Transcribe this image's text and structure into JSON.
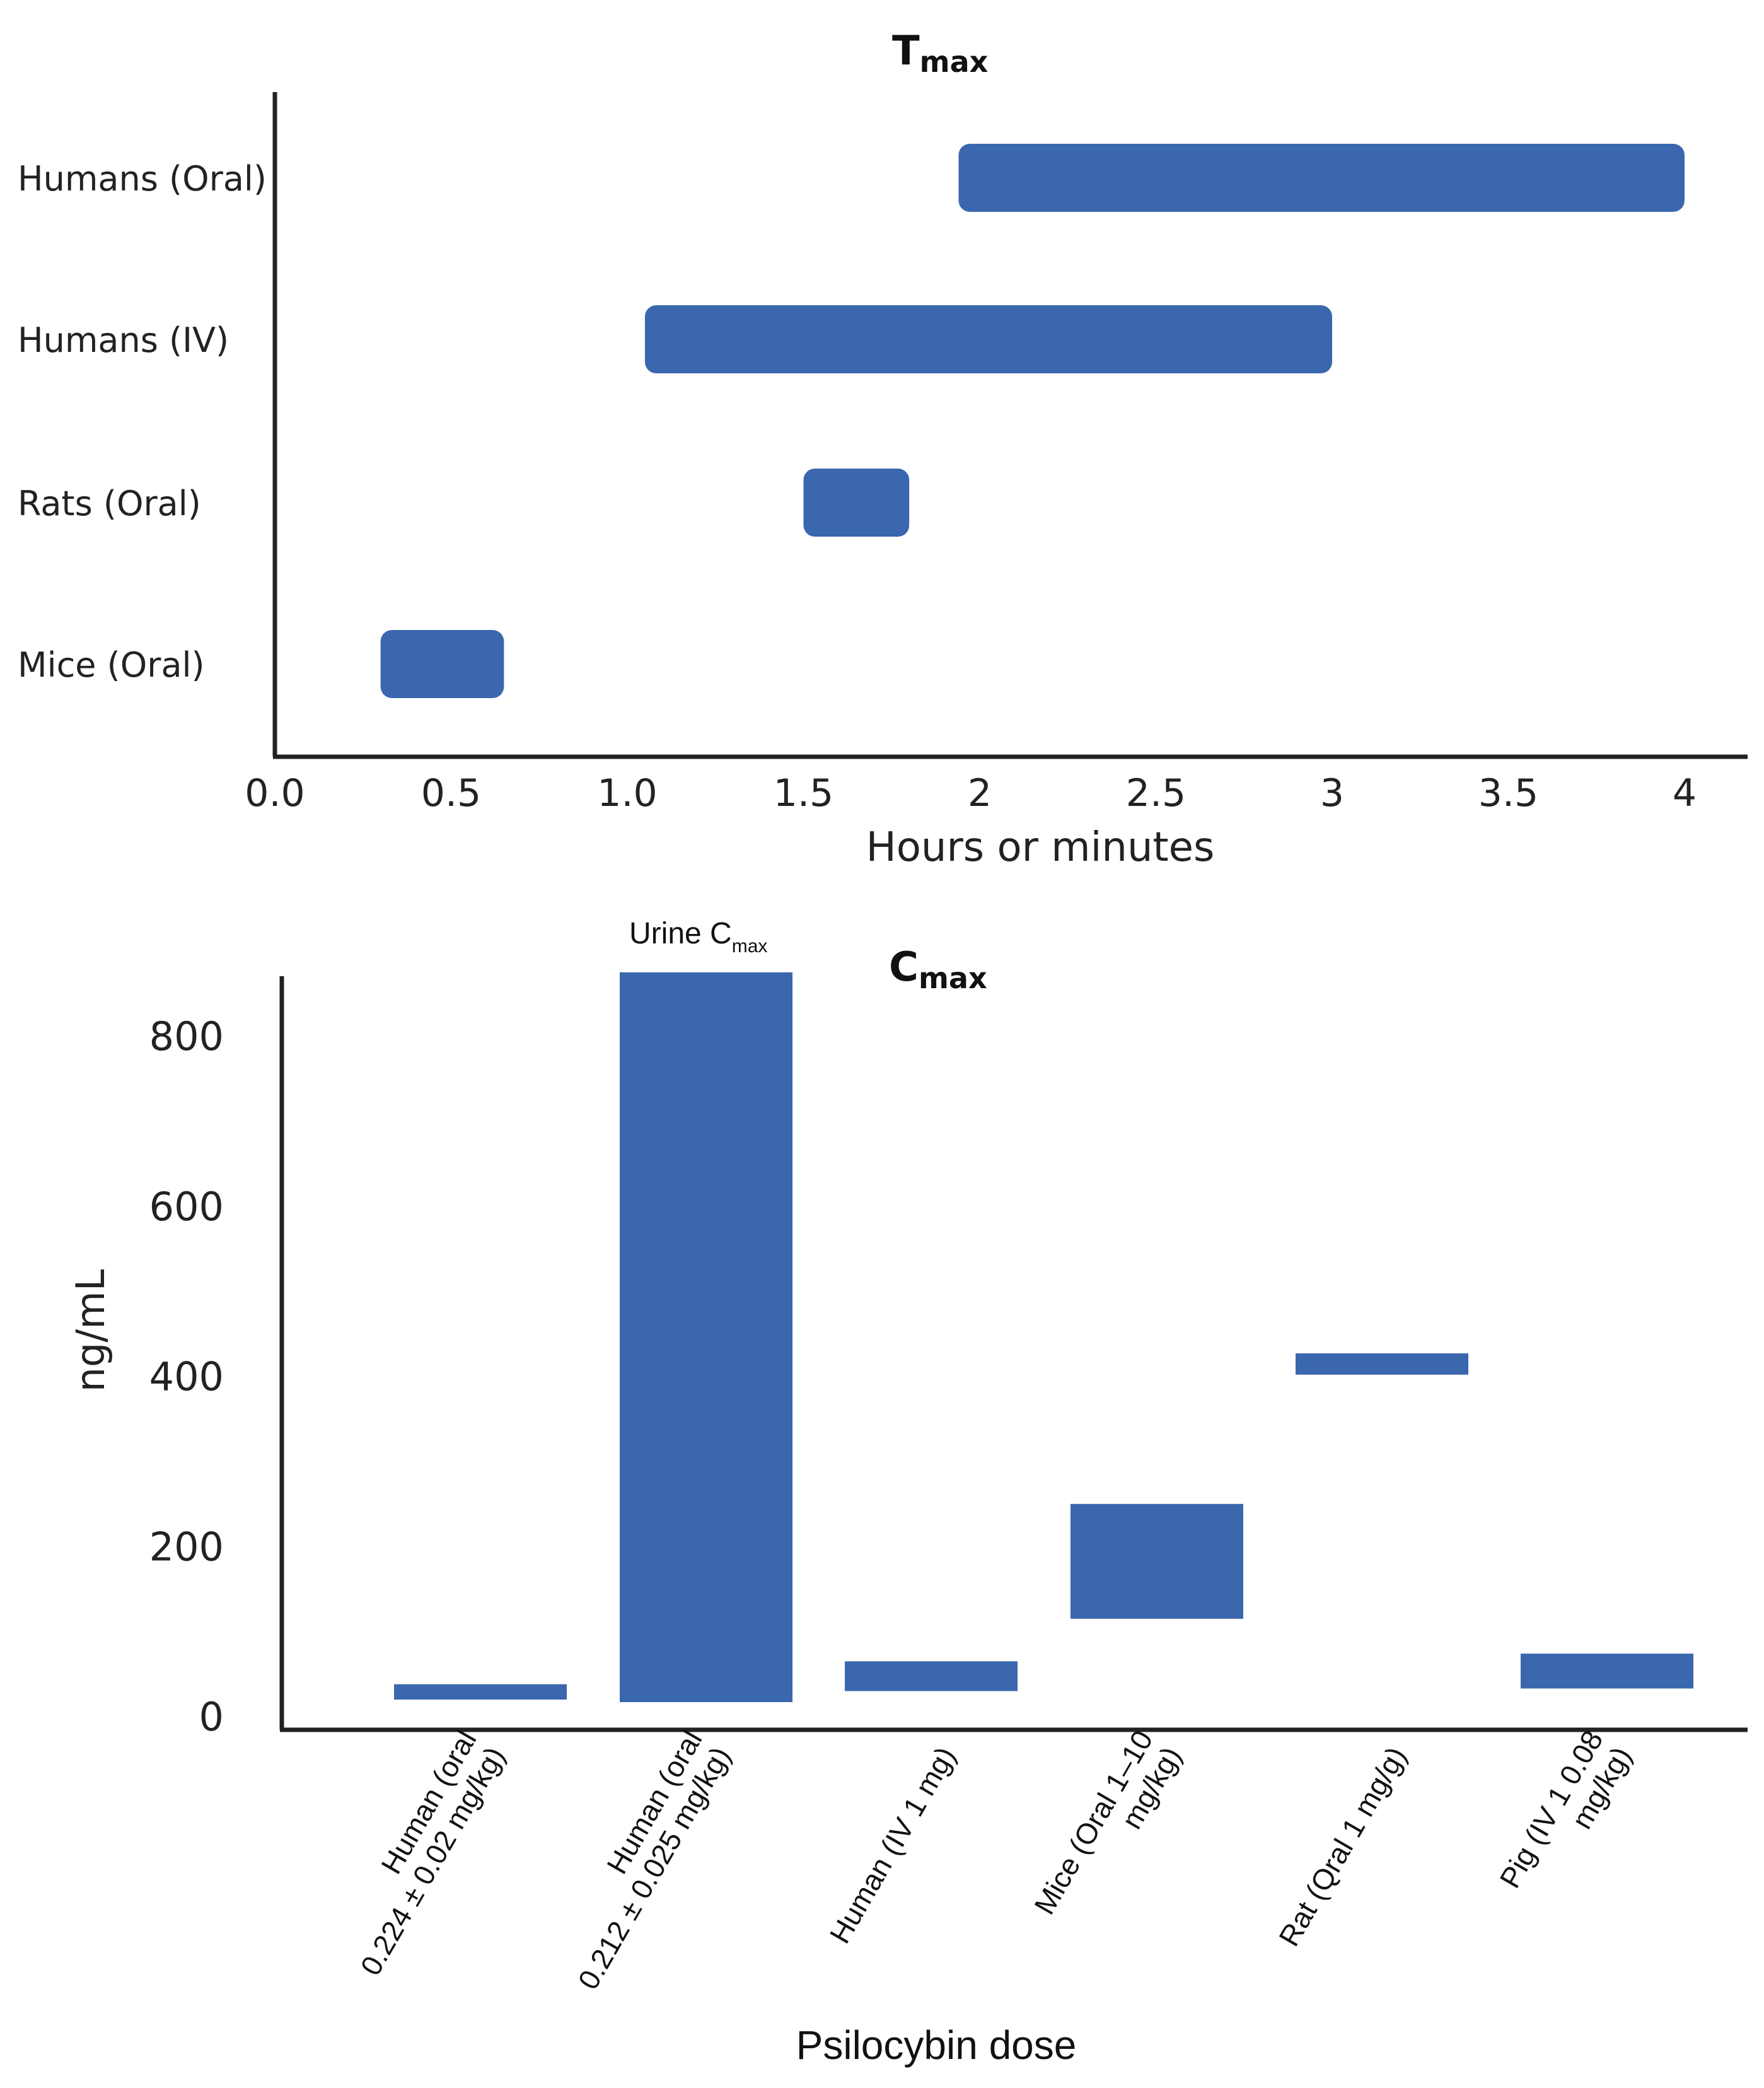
{
  "chart_data": [
    {
      "type": "bar",
      "orientation": "horizontal-range",
      "title": "T",
      "title_subscript": "max",
      "xlabel": "Hours or minutes",
      "xlim": [
        0,
        4.15
      ],
      "x_ticks": [
        "0.0",
        "0.5",
        "1.0",
        "1.5",
        "2",
        "2.5",
        "3",
        "3.5",
        "4"
      ],
      "x_tick_values": [
        0,
        0.5,
        1.0,
        1.5,
        2,
        2.5,
        3,
        3.5,
        4
      ],
      "categories": [
        "Humans (Oral)",
        "Humans (IV)",
        "Rats (Oral)",
        "Mice (Oral)"
      ],
      "ranges": [
        [
          1.94,
          4.0
        ],
        [
          1.05,
          3.0
        ],
        [
          1.5,
          1.8
        ],
        [
          0.3,
          0.65
        ]
      ],
      "bar_color": "#3a67ad",
      "grid": false
    },
    {
      "type": "bar",
      "orientation": "vertical-range",
      "title": "C",
      "title_subscript": "max",
      "ylabel": "ng/mL",
      "xlabel": "Psilocybin dose",
      "ylim": [
        0,
        880
      ],
      "y_ticks": [
        "0",
        "200",
        "400",
        "600",
        "800"
      ],
      "y_tick_values": [
        0,
        200,
        400,
        600,
        800
      ],
      "categories": [
        [
          "Human (oral",
          "0.224 ± 0.02 mg/kg)"
        ],
        [
          "Human (oral",
          "0.212 ± 0.025 mg/kg)"
        ],
        [
          "Human (IV 1 mg)"
        ],
        [
          "Mice (Oral 1–10",
          "mg/kg)"
        ],
        [
          "Rat (Qral 1 mg/g)"
        ],
        [
          "Pig (IV 1 0.08",
          "mg/kg)"
        ]
      ],
      "ranges": [
        [
          20,
          38
        ],
        [
          17,
          875
        ],
        [
          30,
          65
        ],
        [
          115,
          250
        ],
        [
          402,
          427
        ],
        [
          33,
          74
        ]
      ],
      "annotation": {
        "text": "Urine C",
        "subscript": "max",
        "category_index": 1
      },
      "bar_color": "#3a67ad",
      "grid": false
    }
  ]
}
